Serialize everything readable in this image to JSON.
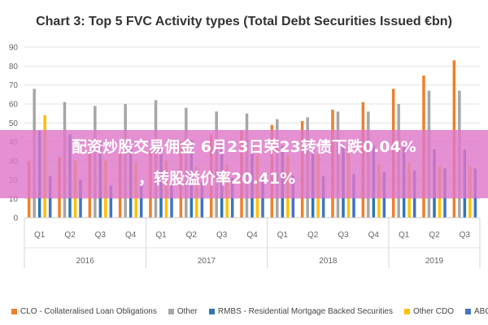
{
  "chart_data": {
    "type": "bar",
    "title": "Chart 3: Top 5 FVC Activity types (Total Debt Securities Issued €bn)",
    "ylim": [
      0,
      90
    ],
    "yticks": [
      0,
      10,
      20,
      30,
      40,
      50,
      60,
      70,
      80,
      90
    ],
    "grid": true,
    "legend_position": "bottom",
    "categories": [
      "Q1",
      "Q2",
      "Q3",
      "Q4",
      "Q1",
      "Q2",
      "Q3",
      "Q4",
      "Q1",
      "Q2",
      "Q3",
      "Q4",
      "Q1",
      "Q2",
      "Q3"
    ],
    "year_groups": [
      {
        "label": "2016",
        "count": 4
      },
      {
        "label": "2017",
        "count": 4
      },
      {
        "label": "2018",
        "count": 4
      },
      {
        "label": "2019",
        "count": 3
      }
    ],
    "series": [
      {
        "name": "CLO - Collateralised Loan Obligations",
        "color": "#f07f2a",
        "values": [
          30,
          32,
          34,
          35,
          36,
          40,
          44,
          46,
          49,
          51,
          57,
          61,
          68,
          75,
          83
        ]
      },
      {
        "name": "Other",
        "color": "#a6a6a6",
        "values": [
          68,
          61,
          59,
          60,
          62,
          58,
          56,
          55,
          52,
          53,
          56,
          56,
          60,
          67,
          67
        ]
      },
      {
        "name": "RMBS - Residential Mortgage Backed Securities",
        "color": "#2e75b6",
        "values": [
          46,
          44,
          40,
          40,
          41,
          41,
          40,
          39,
          38,
          38,
          38,
          38,
          38,
          36,
          36
        ]
      },
      {
        "name": "Other CDO",
        "color": "#ffc000",
        "values": [
          54,
          30,
          30,
          29,
          30,
          27,
          28,
          33,
          33,
          34,
          36,
          28,
          29,
          27,
          27
        ]
      },
      {
        "name": "ABCP",
        "color": "#4472c4",
        "values": [
          22,
          20,
          17,
          17,
          19,
          19,
          21,
          21,
          22,
          22,
          23,
          24,
          25,
          26,
          26
        ]
      }
    ]
  },
  "overlay": {
    "line1": "配资炒股交易佣金 6月23日荣23转债下跌0.04%",
    "line2": "，转股溢价率20.41%"
  }
}
